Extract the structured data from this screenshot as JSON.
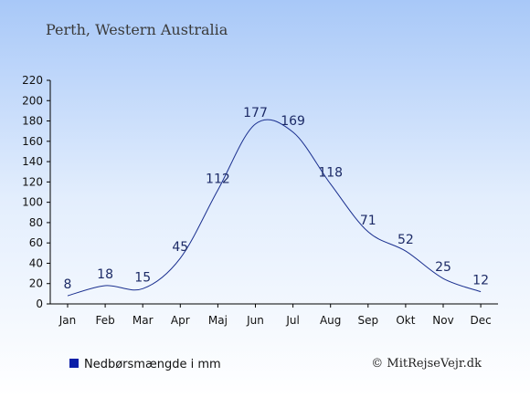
{
  "chart_data": {
    "type": "line",
    "title": "Perth, Western Australia",
    "categories": [
      "Jan",
      "Feb",
      "Mar",
      "Apr",
      "Maj",
      "Jun",
      "Jul",
      "Aug",
      "Sep",
      "Okt",
      "Nov",
      "Dec"
    ],
    "series": [
      {
        "name": "Nedbørsmængde i mm",
        "values": [
          8,
          18,
          15,
          45,
          112,
          177,
          169,
          118,
          71,
          52,
          25,
          12
        ]
      }
    ],
    "y_ticks": [
      0,
      20,
      40,
      60,
      80,
      100,
      120,
      140,
      160,
      180,
      200,
      220
    ],
    "ylim": [
      0,
      220
    ],
    "xlabel": "",
    "ylabel": "",
    "legend_position": "bottom-left",
    "grid": false,
    "colors": {
      "line": "#1a2f8f",
      "legend_marker": "#0a1ea8",
      "text": "#1c2a66",
      "background_top": "#a8c8f8",
      "background_bottom": "#ffffff"
    }
  },
  "credit": "© MitRejseVejr.dk"
}
